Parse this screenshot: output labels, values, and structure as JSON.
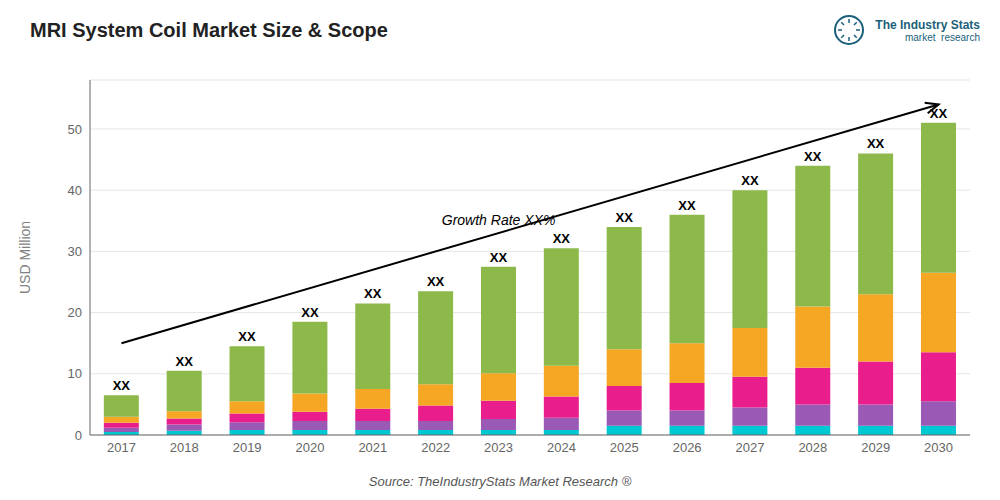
{
  "chart_data": {
    "type": "bar",
    "title": "MRI System Coil Market Size & Scope",
    "ylabel": "USD Million",
    "source": "Source: TheIndustryStats Market Research ®",
    "categories": [
      "2017",
      "2018",
      "2019",
      "2020",
      "2021",
      "2022",
      "2023",
      "2024",
      "2025",
      "2026",
      "2027",
      "2028",
      "2029",
      "2030"
    ],
    "series": [
      {
        "color": "#00c8d2",
        "values": [
          0.5,
          0.7,
          0.8,
          0.8,
          0.8,
          0.8,
          0.8,
          0.8,
          1.5,
          1.5,
          1.5,
          1.5,
          1.5,
          1.5
        ]
      },
      {
        "color": "#9b59b6",
        "values": [
          0.7,
          1.0,
          1.3,
          1.5,
          1.5,
          1.5,
          1.8,
          2.0,
          2.5,
          2.5,
          3.0,
          3.5,
          3.5,
          4.0
        ]
      },
      {
        "color": "#e91e8c",
        "values": [
          0.8,
          1.0,
          1.4,
          1.5,
          2.0,
          2.5,
          3.0,
          3.5,
          4.0,
          4.5,
          5.0,
          6.0,
          7.0,
          8.0
        ]
      },
      {
        "color": "#f5a623",
        "values": [
          1.0,
          1.2,
          2.0,
          3.0,
          3.2,
          3.5,
          4.5,
          5.0,
          6.0,
          6.5,
          8.0,
          10.0,
          11.0,
          13.0
        ]
      },
      {
        "color": "#8db84a",
        "values": [
          3.5,
          6.6,
          9.0,
          11.7,
          14.0,
          15.2,
          17.4,
          19.2,
          20.0,
          21.0,
          22.5,
          23.0,
          23.0,
          24.5
        ]
      }
    ],
    "stacked": true,
    "ylim": [
      0,
      58
    ],
    "yticks": [
      0,
      10,
      20,
      30,
      40,
      50
    ],
    "grid": true,
    "bar_labels": [
      "XX",
      "XX",
      "XX",
      "XX",
      "XX",
      "XX",
      "XX",
      "XX",
      "XX",
      "XX",
      "XX",
      "XX",
      "XX",
      "XX"
    ],
    "annotations": [
      {
        "text": "Growth Rate XX%",
        "y": 33,
        "arrow": [
          15,
          54
        ]
      }
    ],
    "logo": {
      "texts": [
        "The Industry Stats",
        "market  research"
      ],
      "color": "#1a5f7a"
    }
  }
}
